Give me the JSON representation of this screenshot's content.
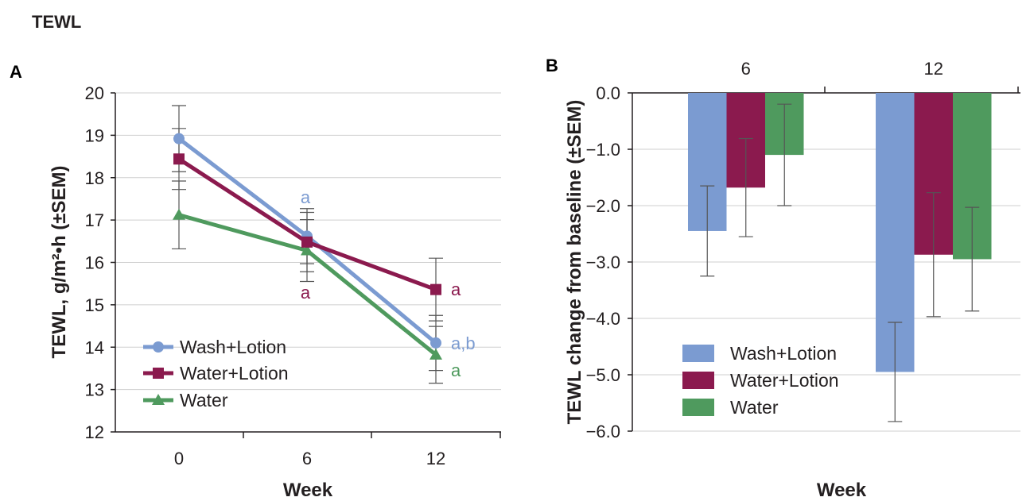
{
  "figure_title": "TEWL",
  "colors": {
    "wash_lotion": "#7b9bd1",
    "water_lotion": "#8b1a4e",
    "water": "#4f9a5e",
    "grid": "#cfcfcf",
    "axis": "#231f20"
  },
  "chart_data": [
    {
      "panel": "A",
      "type": "line",
      "xlabel": "Week",
      "ylabel": "TEWL, g/m²•h (±SEM)",
      "x": [
        "0",
        "6",
        "12"
      ],
      "ylim": [
        12,
        20
      ],
      "yticks": [
        "12",
        "13",
        "14",
        "15",
        "16",
        "17",
        "18",
        "19",
        "20"
      ],
      "grid": true,
      "legend_position": "bottom-left",
      "series": [
        {
          "name": "Wash+Lotion",
          "color": "#7b9bd1",
          "marker": "circle",
          "values": [
            18.92,
            16.62,
            14.1
          ],
          "err": [
            0.78,
            0.65,
            0.65
          ],
          "labels": [
            "",
            "a",
            "a,b"
          ]
        },
        {
          "name": "Water+Lotion",
          "color": "#8b1a4e",
          "marker": "square",
          "values": [
            18.44,
            16.48,
            15.36
          ],
          "err": [
            0.72,
            0.7,
            0.74
          ],
          "labels": [
            "",
            "a",
            "a"
          ]
        },
        {
          "name": "Water",
          "color": "#4f9a5e",
          "marker": "triangle",
          "values": [
            17.12,
            16.28,
            13.82
          ],
          "err": [
            0.8,
            0.73,
            0.67
          ],
          "labels": [
            "",
            "",
            "a"
          ]
        }
      ]
    },
    {
      "panel": "B",
      "type": "bar",
      "xlabel": "Week",
      "ylabel": "TEWL change from baseline (±SEM)",
      "categories": [
        "6",
        "12"
      ],
      "ylim": [
        -6.0,
        0.0
      ],
      "yticks": [
        "0.0",
        "−1.0",
        "−2.0",
        "−3.0",
        "−4.0",
        "−5.0",
        "−6.0"
      ],
      "grid": true,
      "legend_position": "bottom-left",
      "series": [
        {
          "name": "Wash+Lotion",
          "color": "#7b9bd1",
          "values": [
            -2.45,
            -4.95
          ],
          "err": [
            0.8,
            0.88
          ]
        },
        {
          "name": "Water+Lotion",
          "color": "#8b1a4e",
          "values": [
            -1.68,
            -2.87
          ],
          "err": [
            0.87,
            1.1
          ]
        },
        {
          "name": "Water",
          "color": "#4f9a5e",
          "values": [
            -1.1,
            -2.95
          ],
          "err": [
            0.9,
            0.92
          ]
        }
      ]
    }
  ]
}
